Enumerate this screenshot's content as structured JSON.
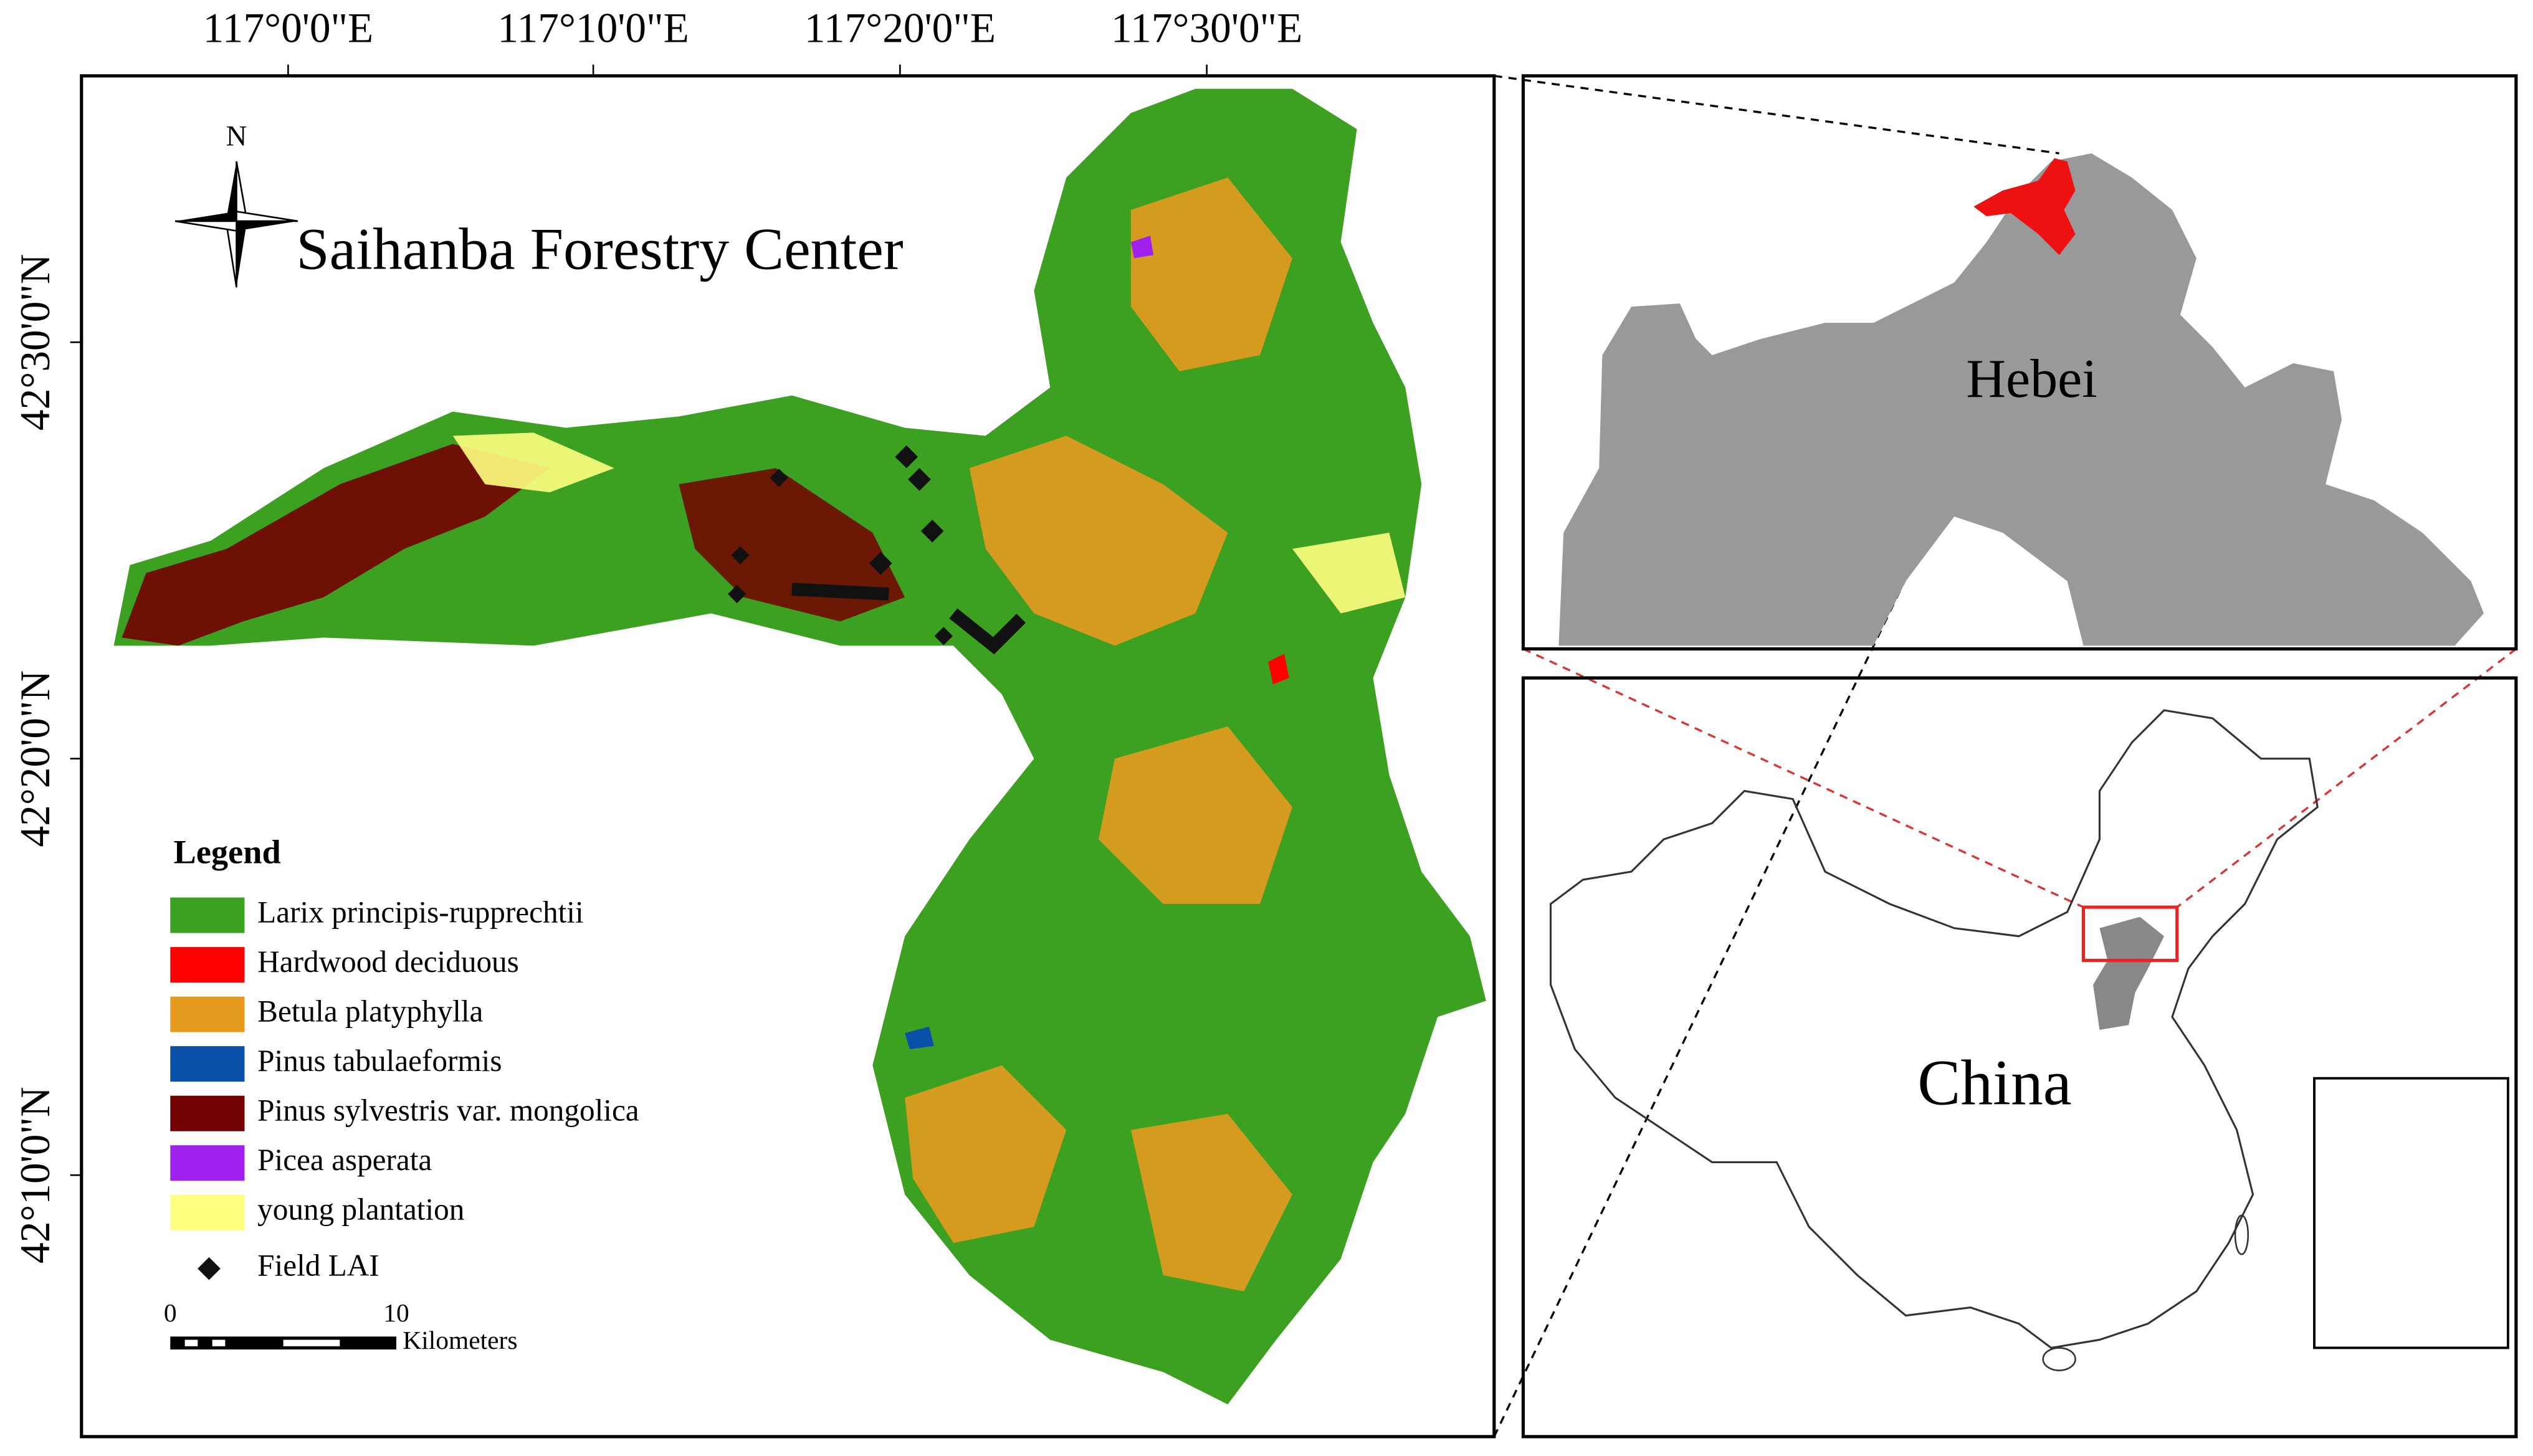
{
  "map": {
    "title": "Saihanba Forestry Center",
    "north": "N",
    "lon_ticks": [
      "117°0'0\"E",
      "117°10'0\"E",
      "117°20'0\"E",
      "117°30'0\"E"
    ],
    "lat_ticks": [
      "42°30'0\"N",
      "42°20'0\"N",
      "42°10'0\"N"
    ],
    "legend": {
      "title": "Legend",
      "items": [
        {
          "label": "Larix principis-rupprechtii",
          "color": "#3ca020"
        },
        {
          "label": "Hardwood deciduous",
          "color": "#ff0000"
        },
        {
          "label": "Betula platyphylla",
          "color": "#e69a1e"
        },
        {
          "label": "Pinus tabulaeformis",
          "color": "#0a4fa8"
        },
        {
          "label": "Pinus sylvestris var. mongolica",
          "color": "#730000"
        },
        {
          "label": "Picea asperata",
          "color": "#a020f0"
        },
        {
          "label": "young plantation",
          "color": "#ffff80"
        }
      ],
      "point": "Field LAI"
    },
    "scale_bar": {
      "labels": [
        "0",
        "10"
      ],
      "unit": "Kilometers"
    },
    "inset_labels": {
      "province": "Hebei",
      "country": "China"
    }
  }
}
